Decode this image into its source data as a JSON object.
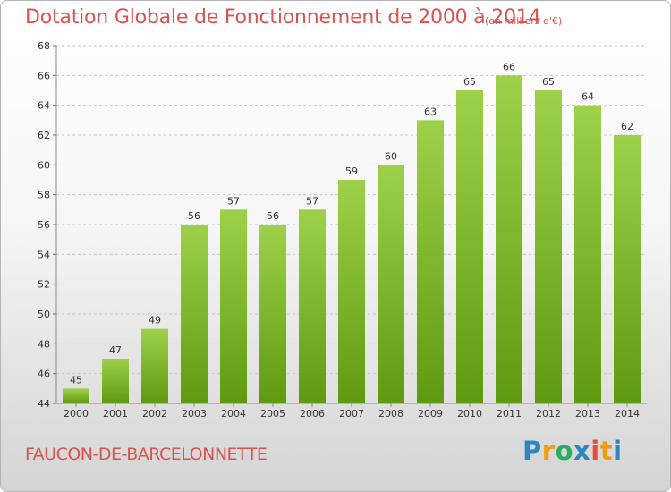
{
  "title": "Dotation Globale de Fonctionnement de 2000 à 2014",
  "unit": "(en milliers d'€)",
  "commune": "FAUCON-DE-BARCELONNETTE",
  "logo": {
    "letters": [
      "P",
      "r",
      "o",
      "x",
      "i",
      "t",
      "i"
    ],
    "colors": [
      "#2e86c1",
      "#f39c12",
      "#27ae60",
      "#2e86c1",
      "#e74c3c",
      "#f39c12",
      "#2e86c1"
    ]
  },
  "colors": {
    "bar_top": "#9ed14a",
    "bar_bottom": "#5e9a10",
    "text_accent": "#d9534f",
    "grid": "#c8c8c8"
  },
  "chart_data": {
    "type": "bar",
    "title": "Dotation Globale de Fonctionnement de 2000 à 2014",
    "unit": "(en milliers d'€)",
    "categories": [
      "2000",
      "2001",
      "2002",
      "2003",
      "2004",
      "2005",
      "2006",
      "2007",
      "2008",
      "2009",
      "2010",
      "2011",
      "2012",
      "2013",
      "2014"
    ],
    "values": [
      45,
      47,
      49,
      56,
      57,
      56,
      57,
      59,
      60,
      63,
      65,
      66,
      65,
      64,
      62
    ],
    "ylim": [
      44,
      68
    ],
    "yticks": [
      44,
      46,
      48,
      50,
      52,
      54,
      56,
      58,
      60,
      62,
      64,
      66,
      68
    ],
    "grid": true,
    "legend": "none"
  }
}
